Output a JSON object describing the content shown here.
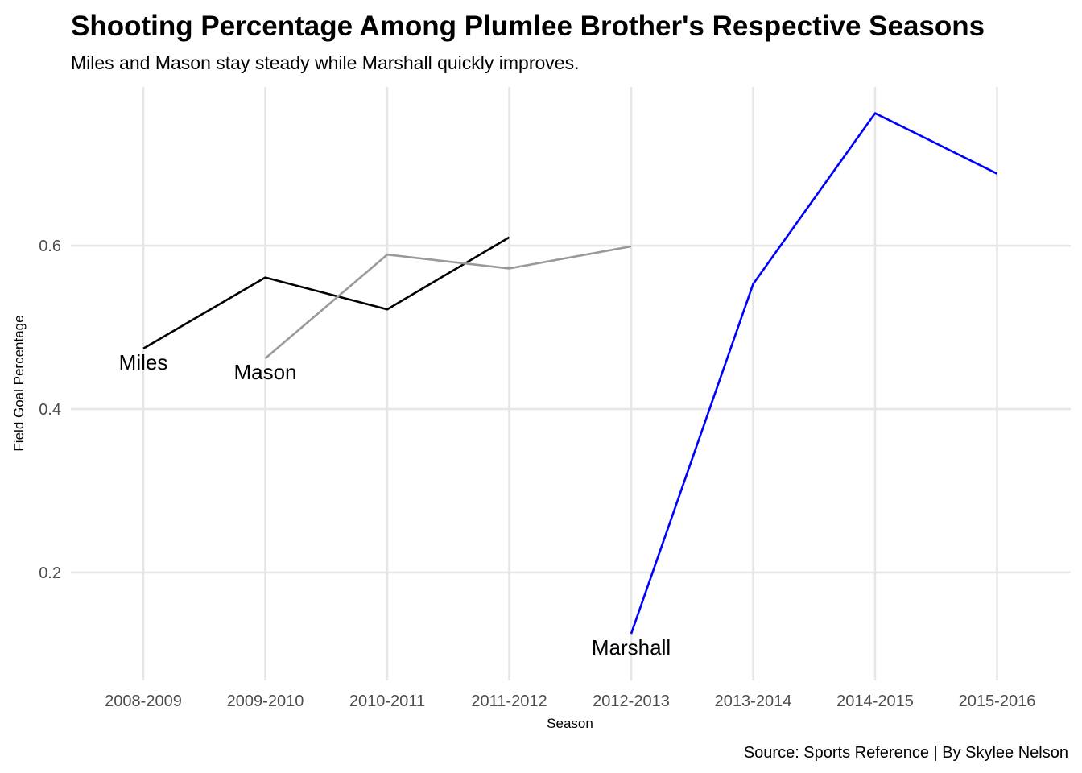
{
  "chart_data": {
    "type": "line",
    "title": "Shooting Percentage Among Plumlee Brother's Respective Seasons",
    "subtitle": "Miles and Mason stay steady while Marshall quickly improves.",
    "xlabel": "Season",
    "ylabel": "Field Goal Percentage",
    "caption": "Source: Sports Reference | By Skylee Nelson",
    "categories": [
      "2008-2009",
      "2009-2010",
      "2010-2011",
      "2011-2012",
      "2012-2013",
      "2013-2014",
      "2014-2015",
      "2015-2016"
    ],
    "y_ticks": [
      0.2,
      0.4,
      0.6
    ],
    "ylim": [
      0.07,
      0.79
    ],
    "grid": true,
    "legend": "none",
    "series": [
      {
        "name": "Miles",
        "color": "#000000",
        "x": [
          "2008-2009",
          "2009-2010",
          "2010-2011",
          "2011-2012"
        ],
        "values": [
          0.474,
          0.561,
          0.522,
          0.61
        ]
      },
      {
        "name": "Mason",
        "color": "#999999",
        "x": [
          "2009-2010",
          "2010-2011",
          "2011-2012",
          "2012-2013"
        ],
        "values": [
          0.462,
          0.589,
          0.572,
          0.599
        ]
      },
      {
        "name": "Marshall",
        "color": "#0000ff",
        "x": [
          "2012-2013",
          "2013-2014",
          "2014-2015",
          "2015-2016"
        ],
        "values": [
          0.125,
          0.553,
          0.762,
          0.688
        ]
      }
    ]
  }
}
